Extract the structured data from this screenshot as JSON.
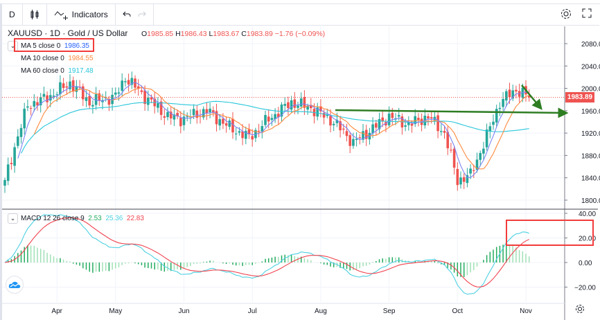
{
  "toolbar": {
    "interval": "D",
    "indicators_label": "Indicators"
  },
  "symbol": {
    "title": "XAUUSD · 1D · Gold / US Dollar",
    "open_k": "O",
    "open": "1985.85",
    "high_k": "H",
    "high": "1986.43",
    "low_k": "L",
    "low": "1983.67",
    "close_k": "C",
    "close": "1983.89",
    "change": "−1.76 (−0.09%)"
  },
  "studies": [
    {
      "label": "MA 5 close 0",
      "value": "1986.35",
      "color": "#2962ff"
    },
    {
      "label": "MA 10 close 0",
      "value": "1984.55",
      "color": "#ff8a3d"
    },
    {
      "label": "MA 60 close 0",
      "value": "1917.48",
      "color": "#26c6da"
    }
  ],
  "macd": {
    "label": "MACD 12 26 close 9",
    "hist": "2.53",
    "macd": "25.36",
    "signal": "22.83"
  },
  "price_tag": "1983.89",
  "chart_data": {
    "type": "candlestick",
    "symbol": "XAUUSD",
    "price_axis": {
      "ticks": [
        "2080.00",
        "2040.00",
        "2000.00",
        "1960.00",
        "1920.00",
        "1880.00",
        "1840.00",
        "1800.00"
      ],
      "range": [
        1788,
        2110
      ]
    },
    "macd_axis": {
      "ticks": [
        "40.00",
        "20.00",
        "0.00",
        "-20.00"
      ],
      "range": [
        -38,
        46
      ]
    },
    "time_axis": [
      {
        "label": "Apr",
        "day": 16
      },
      {
        "label": "May",
        "day": 34
      },
      {
        "label": "Jun",
        "day": 55
      },
      {
        "label": "Jul",
        "day": 76
      },
      {
        "label": "Aug",
        "day": 97
      },
      {
        "label": "Sep",
        "day": 118
      },
      {
        "label": "Oct",
        "day": 139
      },
      {
        "label": "Nov",
        "day": 160
      }
    ],
    "close_anchors_day_price": [
      [
        0,
        1836
      ],
      [
        3,
        1895
      ],
      [
        7,
        1970
      ],
      [
        11,
        1978
      ],
      [
        15,
        1990
      ],
      [
        20,
        2010
      ],
      [
        26,
        1975
      ],
      [
        34,
        1985
      ],
      [
        37,
        2020
      ],
      [
        43,
        1985
      ],
      [
        50,
        1950
      ],
      [
        54,
        1945
      ],
      [
        62,
        1960
      ],
      [
        69,
        1930
      ],
      [
        75,
        1912
      ],
      [
        81,
        1945
      ],
      [
        88,
        1975
      ],
      [
        94,
        1965
      ],
      [
        101,
        1940
      ],
      [
        107,
        1903
      ],
      [
        111,
        1920
      ],
      [
        118,
        1950
      ],
      [
        124,
        1935
      ],
      [
        130,
        1950
      ],
      [
        135,
        1920
      ],
      [
        139,
        1835
      ],
      [
        143,
        1845
      ],
      [
        147,
        1900
      ],
      [
        152,
        1975
      ],
      [
        157,
        1998
      ],
      [
        161,
        1983.89
      ]
    ],
    "colors": {
      "up": "#26a69a",
      "down": "#ef5350",
      "macd": "#4dd0e1",
      "signal": "#f0434f",
      "hist_up": "#22ab5e",
      "hist_down": "#9fe0b5",
      "trendline": "#2e7d22"
    }
  }
}
